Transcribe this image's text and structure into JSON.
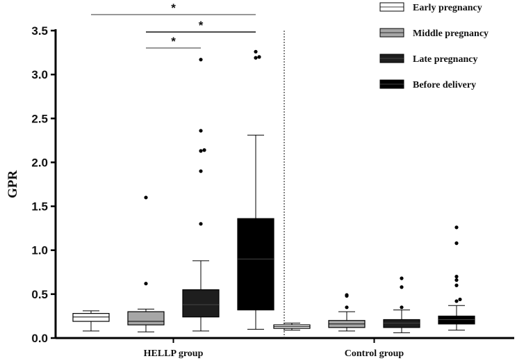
{
  "chart_data": {
    "type": "boxplot",
    "title": "",
    "ylabel": "GPR",
    "ylim": [
      0,
      3.5
    ],
    "yticks": [
      "0.0",
      "0.5",
      "1.0",
      "1.5",
      "2.0",
      "2.5",
      "3.0",
      "3.5"
    ],
    "groups": [
      "HELLP group",
      "Control group"
    ],
    "legend": [
      {
        "label": "Early pregnancy",
        "fill": "#ffffff"
      },
      {
        "label": "Middle pregnancy",
        "fill": "#a6a6a6"
      },
      {
        "label": "Late pregnancy",
        "fill": "#1e1e1e"
      },
      {
        "label": "Before delivery",
        "fill": "#000000"
      }
    ],
    "boxes": [
      {
        "group": "HELLP group",
        "series": "Early pregnancy",
        "whisker_low": 0.08,
        "q1": 0.19,
        "median": 0.24,
        "q3": 0.28,
        "whisker_high": 0.31,
        "outliers": []
      },
      {
        "group": "HELLP group",
        "series": "Middle pregnancy",
        "whisker_low": 0.07,
        "q1": 0.15,
        "median": 0.19,
        "q3": 0.3,
        "whisker_high": 0.33,
        "outliers": [
          0.62,
          1.6
        ]
      },
      {
        "group": "HELLP group",
        "series": "Late pregnancy",
        "whisker_low": 0.08,
        "q1": 0.24,
        "median": 0.38,
        "q3": 0.55,
        "whisker_high": 0.88,
        "outliers": [
          1.3,
          1.9,
          2.13,
          2.14,
          2.36,
          3.17
        ]
      },
      {
        "group": "HELLP group",
        "series": "Before delivery",
        "whisker_low": 0.1,
        "q1": 0.32,
        "median": 0.9,
        "q3": 1.36,
        "whisker_high": 2.31,
        "outliers": [
          3.19,
          3.2,
          3.26
        ]
      },
      {
        "group": "Control group",
        "series": "Early pregnancy",
        "whisker_low": 0.09,
        "q1": 0.11,
        "median": 0.13,
        "q3": 0.15,
        "whisker_high": 0.17,
        "outliers": []
      },
      {
        "group": "Control group",
        "series": "Middle pregnancy",
        "whisker_low": 0.08,
        "q1": 0.12,
        "median": 0.16,
        "q3": 0.2,
        "whisker_high": 0.3,
        "outliers": [
          0.35,
          0.48,
          0.49
        ]
      },
      {
        "group": "Control group",
        "series": "Late pregnancy",
        "whisker_low": 0.06,
        "q1": 0.12,
        "median": 0.17,
        "q3": 0.21,
        "whisker_high": 0.32,
        "outliers": [
          0.35,
          0.58,
          0.68
        ]
      },
      {
        "group": "Control group",
        "series": "Before delivery",
        "whisker_low": 0.09,
        "q1": 0.16,
        "median": 0.21,
        "q3": 0.25,
        "whisker_high": 0.37,
        "outliers": [
          0.42,
          0.44,
          0.6,
          0.66,
          0.7,
          1.08,
          1.26
        ]
      }
    ],
    "significance": [
      {
        "from": "Middle pregnancy",
        "to": "Late pregnancy",
        "group": "HELLP group",
        "label": "*"
      },
      {
        "from": "Middle pregnancy",
        "to": "Before delivery",
        "group": "HELLP group",
        "label": "*"
      },
      {
        "from": "Early pregnancy",
        "to": "Before delivery",
        "group": "HELLP group",
        "label": "*"
      }
    ],
    "divider": "dotted vertical line between groups"
  }
}
